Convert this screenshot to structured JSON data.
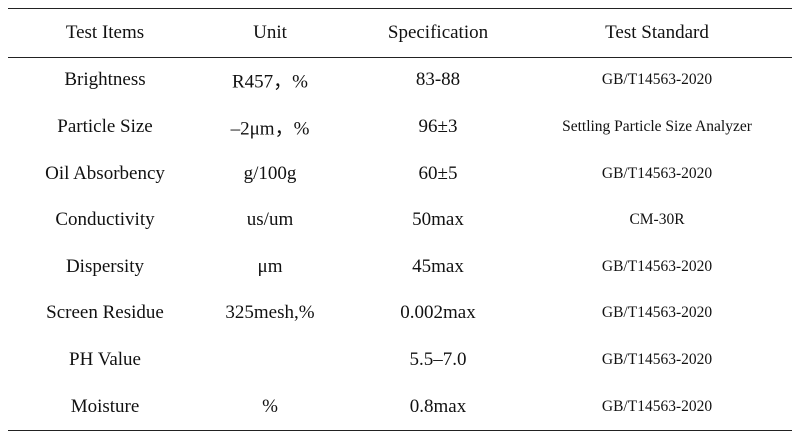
{
  "table": {
    "header": [
      "Test Items",
      "Unit",
      "Specification",
      "Test Standard"
    ],
    "rows": [
      {
        "item": "Brightness",
        "unit": "R457，%",
        "spec": "83-88",
        "standard": "GB/T14563-2020"
      },
      {
        "item": "Particle Size",
        "unit": "–2μm，%",
        "spec": "96±3",
        "standard": "Settling Particle Size Analyzer"
      },
      {
        "item": "Oil Absorbency",
        "unit": "g/100g",
        "spec": "60±5",
        "standard": "GB/T14563-2020"
      },
      {
        "item": "Conductivity",
        "unit": "us/um",
        "spec": "50max",
        "standard": "CM-30R"
      },
      {
        "item": "Dispersity",
        "unit": "μm",
        "spec": "45max",
        "standard": "GB/T14563-2020"
      },
      {
        "item": "Screen Residue",
        "unit": "325mesh,%",
        "spec": "0.002max",
        "standard": "GB/T14563-2020"
      },
      {
        "item": "PH Value",
        "spec": "5.5–7.0",
        "standard": "GB/T14563-2020"
      },
      {
        "item": "Moisture",
        "unit": "%",
        "spec": "0.8max",
        "standard": "GB/T14563-2020"
      }
    ]
  }
}
